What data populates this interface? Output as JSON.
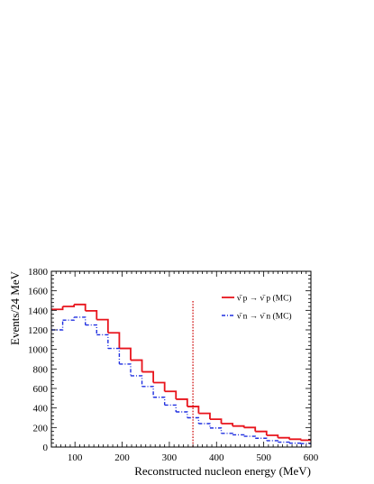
{
  "chart_data": {
    "type": "line",
    "title": "",
    "xlabel": "Reconstructed nucleon energy (MeV)",
    "ylabel": "Events/24 MeV",
    "xlim": [
      50,
      600
    ],
    "ylim": [
      0,
      1800
    ],
    "x_ticks": [
      "100",
      "200",
      "300",
      "400",
      "500",
      "600"
    ],
    "y_ticks": [
      "0",
      "200",
      "400",
      "600",
      "800",
      "1000",
      "1200",
      "1400",
      "1600",
      "1800"
    ],
    "bin_edges": [
      50,
      74,
      98,
      122,
      146,
      170,
      194,
      218,
      242,
      266,
      290,
      314,
      338,
      362,
      386,
      410,
      434,
      458,
      482,
      506,
      530,
      554,
      578,
      600
    ],
    "series": [
      {
        "name": "ν̄ p → ν̄ p (MC)",
        "color": "#e8141c",
        "style": "solid",
        "values": [
          1410,
          1440,
          1460,
          1395,
          1305,
          1170,
          1010,
          890,
          770,
          660,
          570,
          490,
          415,
          345,
          285,
          240,
          215,
          200,
          160,
          120,
          95,
          80,
          70
        ]
      },
      {
        "name": "ν̄ n → ν̄ n (MC)",
        "color": "#1f2fe0",
        "style": "dashdot",
        "values": [
          1200,
          1300,
          1330,
          1250,
          1150,
          1010,
          850,
          730,
          620,
          510,
          430,
          360,
          300,
          240,
          195,
          140,
          125,
          110,
          90,
          65,
          50,
          40,
          35
        ]
      }
    ],
    "cut_line": {
      "x": 350,
      "color": "#cc0000",
      "style": "dotted"
    },
    "grid": false,
    "legend_position": "top-right"
  }
}
